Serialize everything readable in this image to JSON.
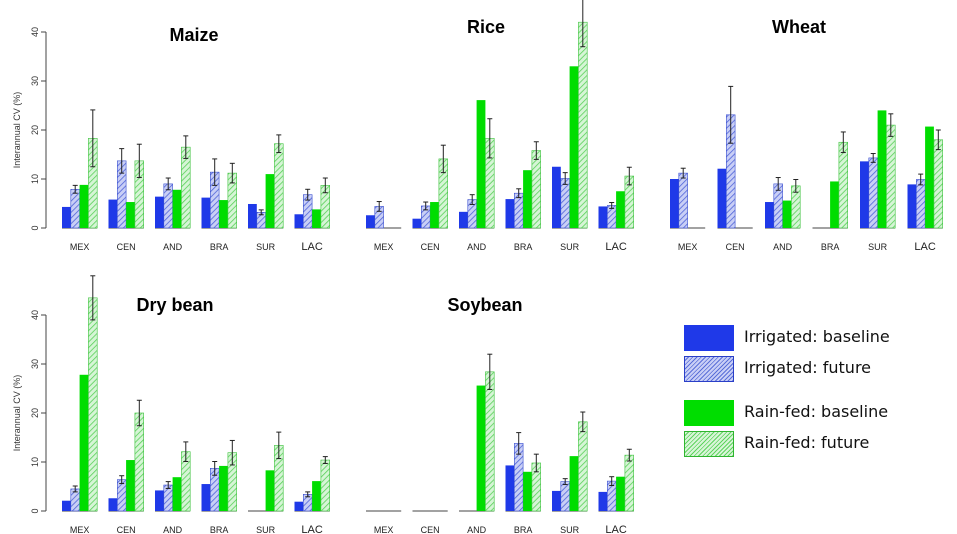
{
  "y_axis_label": "Interannual CV (%)",
  "colors": {
    "irrigated_baseline": "#1f39e8",
    "irrigated_future": "#8c98e8",
    "rainfed_baseline": "#00dd00",
    "rainfed_future": "#a6eea6"
  },
  "legend": {
    "items": [
      {
        "label": "Irrigated: baseline"
      },
      {
        "label": "Irrigated: future"
      },
      {
        "label": "Rain-fed: baseline"
      },
      {
        "label": "Rain-fed: future"
      }
    ]
  },
  "chart_data": [
    {
      "type": "bar",
      "title": "Maize",
      "ylabel": "Interannual CV (%)",
      "categories": [
        "MEX",
        "CEN",
        "AND",
        "BRA",
        "SUR",
        "LAC"
      ],
      "ylim": [
        0,
        40
      ],
      "yticks": [
        0,
        10,
        20,
        30,
        40
      ],
      "show_y_axis": true,
      "grid": false,
      "series": [
        {
          "name": "Irrigated: baseline",
          "values": [
            4.3,
            5.8,
            6.4,
            6.2,
            4.9,
            2.8
          ]
        },
        {
          "name": "Irrigated: future",
          "values": [
            7.9,
            13.7,
            9.0,
            11.4,
            3.2,
            6.8
          ],
          "errors": [
            0.8,
            2.5,
            1.2,
            2.7,
            0.5,
            1.1
          ]
        },
        {
          "name": "Rain-fed: baseline",
          "values": [
            8.8,
            5.3,
            7.8,
            5.7,
            11.0,
            3.8
          ]
        },
        {
          "name": "Rain-fed: future",
          "values": [
            18.3,
            13.7,
            16.5,
            11.2,
            17.2,
            8.7
          ],
          "errors": [
            5.8,
            3.4,
            2.3,
            2.0,
            1.8,
            1.5
          ]
        }
      ]
    },
    {
      "type": "bar",
      "title": "Rice",
      "ylabel": "",
      "categories": [
        "MEX",
        "CEN",
        "AND",
        "BRA",
        "SUR",
        "LAC"
      ],
      "ylim": [
        0,
        40
      ],
      "yticks": [],
      "show_y_axis": false,
      "grid": false,
      "series": [
        {
          "name": "Irrigated: baseline",
          "values": [
            2.6,
            1.9,
            3.3,
            5.9,
            12.5,
            4.4
          ]
        },
        {
          "name": "Irrigated: future",
          "values": [
            4.4,
            4.5,
            5.8,
            7.1,
            10.1,
            4.6
          ],
          "errors": [
            1.0,
            0.8,
            1.0,
            0.9,
            1.2,
            0.6
          ]
        },
        {
          "name": "Rain-fed: baseline",
          "values": [
            0,
            5.3,
            26.1,
            11.8,
            33.0,
            7.5
          ]
        },
        {
          "name": "Rain-fed: future",
          "values": [
            0,
            14.1,
            18.3,
            15.8,
            42.0,
            10.6
          ],
          "errors": [
            0,
            2.8,
            4.0,
            1.8,
            5.0,
            1.8
          ]
        }
      ]
    },
    {
      "type": "bar",
      "title": "Wheat",
      "ylabel": "",
      "categories": [
        "MEX",
        "CEN",
        "AND",
        "BRA",
        "SUR",
        "LAC"
      ],
      "ylim": [
        0,
        40
      ],
      "yticks": [],
      "show_y_axis": false,
      "grid": false,
      "series": [
        {
          "name": "Irrigated: baseline",
          "values": [
            10.0,
            12.1,
            5.3,
            0,
            13.6,
            8.9
          ]
        },
        {
          "name": "Irrigated: future",
          "values": [
            11.2,
            23.1,
            9.0,
            0,
            14.3,
            9.9
          ],
          "errors": [
            1.0,
            5.8,
            1.3,
            0,
            0.9,
            1.1
          ]
        },
        {
          "name": "Rain-fed: baseline",
          "values": [
            0,
            0,
            5.6,
            9.5,
            24.0,
            20.7
          ]
        },
        {
          "name": "Rain-fed: future",
          "values": [
            0,
            0,
            8.6,
            17.5,
            21.0,
            18.0
          ],
          "errors": [
            0,
            0,
            1.3,
            2.1,
            2.3,
            2.0
          ]
        }
      ]
    },
    {
      "type": "bar",
      "title": "Dry bean",
      "ylabel": "Interannual CV (%)",
      "categories": [
        "MEX",
        "CEN",
        "AND",
        "BRA",
        "SUR",
        "LAC"
      ],
      "ylim": [
        0,
        40
      ],
      "yticks": [
        0,
        10,
        20,
        30,
        40
      ],
      "show_y_axis": true,
      "grid": false,
      "series": [
        {
          "name": "Irrigated: baseline",
          "values": [
            2.1,
            2.6,
            4.2,
            5.5,
            0,
            1.9
          ]
        },
        {
          "name": "Irrigated: future",
          "values": [
            4.5,
            6.4,
            5.3,
            8.7,
            0,
            3.4
          ],
          "errors": [
            0.6,
            0.8,
            0.7,
            1.4,
            0,
            0.5
          ]
        },
        {
          "name": "Rain-fed: baseline",
          "values": [
            27.8,
            10.4,
            6.9,
            9.2,
            8.3,
            6.1
          ]
        },
        {
          "name": "Rain-fed: future",
          "values": [
            43.5,
            20.0,
            12.1,
            11.9,
            13.4,
            10.4
          ],
          "errors": [
            4.5,
            2.6,
            2.0,
            2.5,
            2.7,
            0.7
          ]
        }
      ]
    },
    {
      "type": "bar",
      "title": "Soybean",
      "ylabel": "",
      "categories": [
        "MEX",
        "CEN",
        "AND",
        "BRA",
        "SUR",
        "LAC"
      ],
      "ylim": [
        0,
        40
      ],
      "yticks": [],
      "show_y_axis": false,
      "grid": false,
      "series": [
        {
          "name": "Irrigated: baseline",
          "values": [
            0,
            0,
            0,
            9.3,
            4.1,
            3.9
          ]
        },
        {
          "name": "Irrigated: future",
          "values": [
            0,
            0,
            0,
            13.8,
            6.0,
            6.1
          ],
          "errors": [
            0,
            0,
            0,
            2.2,
            0.6,
            0.9
          ]
        },
        {
          "name": "Rain-fed: baseline",
          "values": [
            0,
            0,
            25.6,
            8.0,
            11.2,
            7.0
          ]
        },
        {
          "name": "Rain-fed: future",
          "values": [
            0,
            0,
            28.4,
            9.8,
            18.2,
            11.4
          ],
          "errors": [
            0,
            0,
            3.6,
            1.8,
            2.0,
            1.2
          ]
        }
      ]
    }
  ]
}
